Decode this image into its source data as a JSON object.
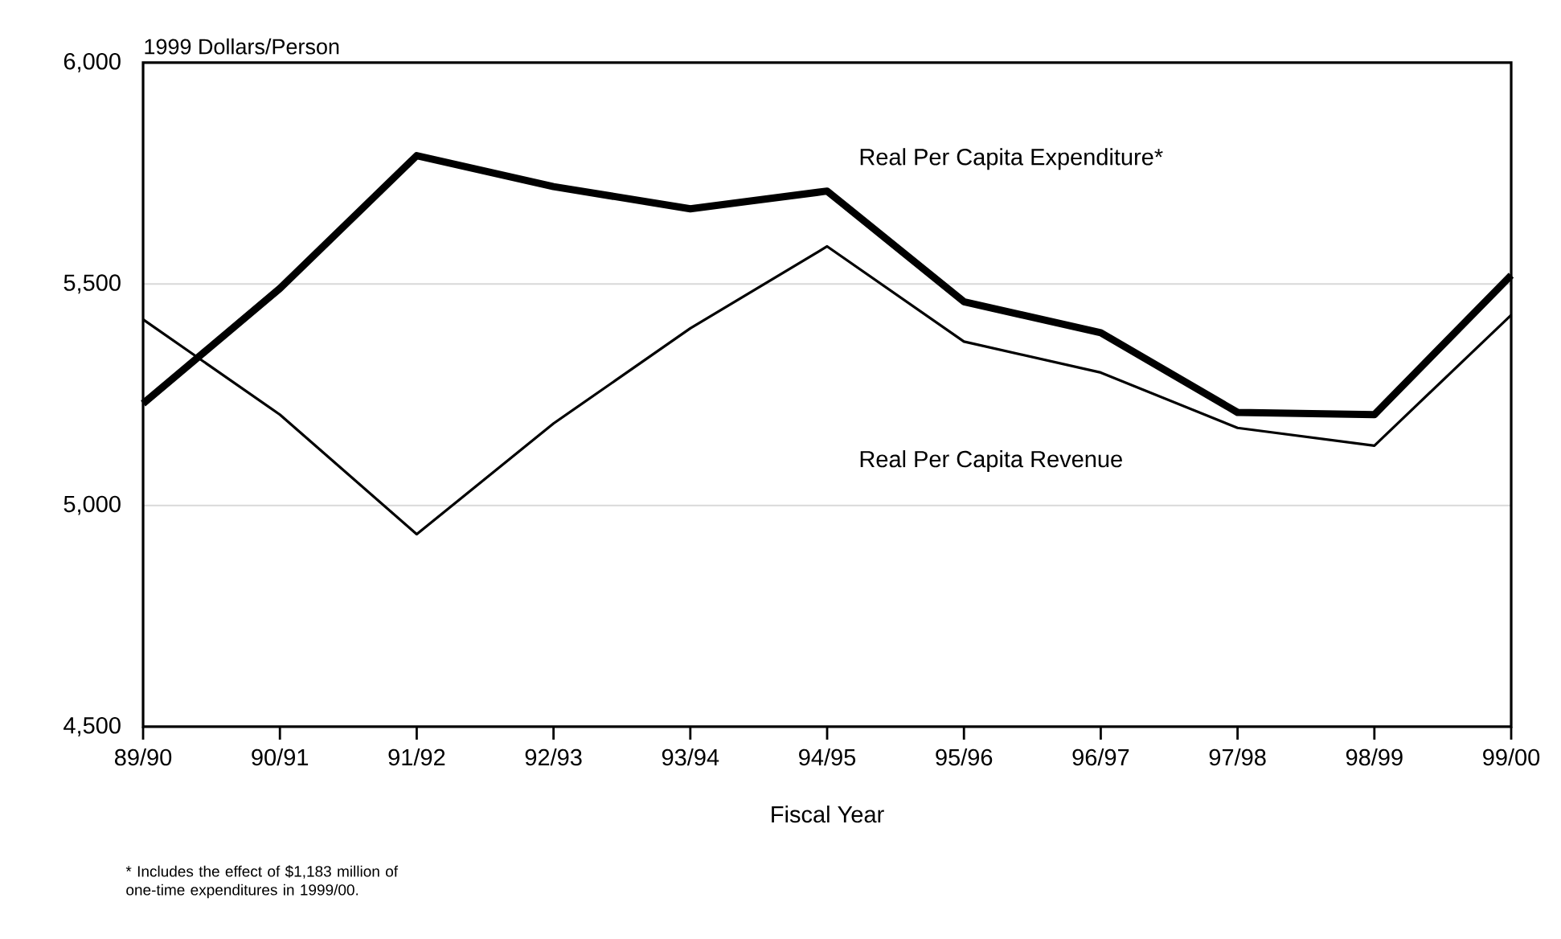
{
  "chart_data": {
    "type": "line",
    "ylabel": "1999 Dollars/Person",
    "xlabel": "Fiscal Year",
    "categories": [
      "89/90",
      "90/91",
      "91/92",
      "92/93",
      "93/94",
      "94/95",
      "95/96",
      "96/97",
      "97/98",
      "98/99",
      "99/00"
    ],
    "series": [
      {
        "name": "Real Per Capita Expenditure*",
        "color": "#000000",
        "values": [
          5230,
          5490,
          5790,
          5720,
          5670,
          5710,
          5460,
          5390,
          5210,
          5205,
          5520
        ]
      },
      {
        "name": "Real Per Capita Revenue",
        "color": "#000000",
        "values": [
          5420,
          5205,
          4935,
          5185,
          5400,
          5585,
          5370,
          5300,
          5175,
          5135,
          5430
        ]
      }
    ],
    "ylim": [
      4500,
      6000
    ],
    "yticks": [
      {
        "value": 4500,
        "label": "4,500"
      },
      {
        "value": 5000,
        "label": "5,000"
      },
      {
        "value": 5500,
        "label": "5,500"
      },
      {
        "value": 6000,
        "label": "6,000"
      }
    ],
    "grid": "y",
    "legend": false,
    "marker": "none",
    "line_style": "solid",
    "annotations": [
      "*  Includes the effect of $1,183 million of one-time expenditures in 1999/00."
    ]
  }
}
